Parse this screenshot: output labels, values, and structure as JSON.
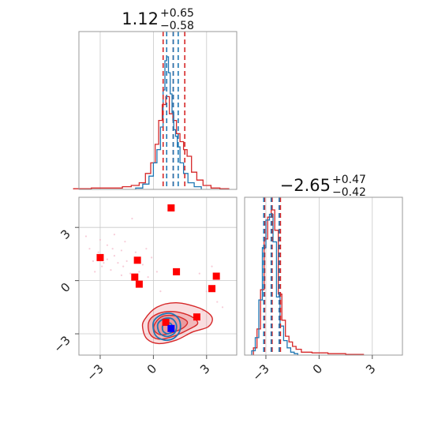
{
  "chart_data": {
    "type": "corner",
    "parameters": [
      {
        "title": {
          "median": "1.12",
          "plus": "+0.65",
          "minus": "−0.58"
        },
        "xlim": [
          -4.2,
          4.7
        ],
        "ticks": [
          -3,
          0,
          3
        ],
        "tick_labels": [
          "−3",
          "0",
          "3"
        ]
      },
      {
        "title": {
          "median": "−2.65",
          "plus": "+0.47",
          "minus": "−0.42"
        },
        "xlim": [
          -4.2,
          4.7
        ],
        "ticks": [
          -3,
          0,
          3
        ],
        "tick_labels": [
          "−3",
          "0",
          "3"
        ]
      }
    ],
    "grid": true,
    "series": [
      {
        "color": "#d62728",
        "hist1": {
          "centers": [
            -4.0,
            -3.0,
            -2.0,
            -1.5,
            -1.0,
            -0.6,
            -0.3,
            0.0,
            0.2,
            0.4,
            0.6,
            0.8,
            1.0,
            1.2,
            1.4,
            1.6,
            1.8,
            2.0,
            2.3,
            2.6,
            3.0,
            3.5,
            4.0
          ],
          "heights": [
            0.005,
            0.01,
            0.01,
            0.02,
            0.03,
            0.05,
            0.12,
            0.2,
            0.34,
            0.52,
            0.64,
            0.7,
            0.57,
            0.52,
            0.42,
            0.36,
            0.3,
            0.25,
            0.13,
            0.07,
            0.03,
            0.01,
            0.005
          ]
        },
        "hist2": {
          "centers": [
            -3.6,
            -3.4,
            -3.2,
            -3.0,
            -2.8,
            -2.6,
            -2.4,
            -2.2,
            -2.0,
            -1.8,
            -1.6,
            -1.4,
            -1.2,
            -0.8,
            0.0,
            1.0,
            2.0
          ],
          "heights": [
            0.05,
            0.18,
            0.45,
            0.8,
            0.95,
            1.0,
            0.86,
            0.42,
            0.24,
            0.13,
            0.09,
            0.06,
            0.04,
            0.02,
            0.015,
            0.01,
            0.005
          ]
        },
        "quantiles1": [
          0.55,
          1.12,
          1.77
        ],
        "quantiles2": [
          -3.07,
          -2.65,
          -2.18
        ],
        "contours": [
          [
            [
              -0.5,
              -2.2
            ],
            [
              0.2,
              -1.5
            ],
            [
              1.3,
              -1.25
            ],
            [
              2.6,
              -1.55
            ],
            [
              3.3,
              -2.05
            ],
            [
              3.1,
              -2.6
            ],
            [
              2.2,
              -2.9
            ],
            [
              1.3,
              -3.35
            ],
            [
              0.3,
              -3.55
            ],
            [
              -0.35,
              -3.3
            ],
            [
              -0.6,
              -2.7
            ]
          ],
          [
            [
              -0.25,
              -2.3
            ],
            [
              0.3,
              -1.85
            ],
            [
              1.2,
              -1.75
            ],
            [
              2.1,
              -2.0
            ],
            [
              2.5,
              -2.4
            ],
            [
              2.0,
              -2.75
            ],
            [
              1.1,
              -3.15
            ],
            [
              0.3,
              -3.3
            ],
            [
              -0.2,
              -3.0
            ]
          ],
          [
            [
              0.1,
              -2.4
            ],
            [
              0.55,
              -2.0
            ],
            [
              1.3,
              -2.0
            ],
            [
              1.9,
              -2.3
            ],
            [
              1.7,
              -2.65
            ],
            [
              1.0,
              -2.95
            ],
            [
              0.4,
              -3.05
            ],
            [
              0.05,
              -2.8
            ]
          ]
        ],
        "markers": [
          [
            -3.0,
            1.3
          ],
          [
            -0.9,
            1.15
          ],
          [
            1.0,
            4.1
          ],
          [
            1.3,
            0.5
          ],
          [
            -1.05,
            0.2
          ],
          [
            -0.8,
            -0.2
          ],
          [
            3.55,
            0.25
          ],
          [
            3.3,
            -0.45
          ],
          [
            2.45,
            -2.05
          ],
          [
            0.7,
            -2.35
          ]
        ]
      },
      {
        "color": "#1f77b4",
        "hist1": {
          "centers": [
            -0.8,
            -0.4,
            -0.1,
            0.1,
            0.3,
            0.5,
            0.6,
            0.7,
            0.8,
            0.9,
            1.0,
            1.1,
            1.2,
            1.3,
            1.4,
            1.6,
            1.8,
            2.1,
            2.5
          ],
          "heights": [
            0.01,
            0.04,
            0.1,
            0.2,
            0.3,
            0.47,
            0.75,
            0.97,
            1.0,
            0.88,
            0.72,
            0.58,
            0.45,
            0.4,
            0.32,
            0.2,
            0.12,
            0.05,
            0.02
          ]
        },
        "hist2": {
          "centers": [
            -3.7,
            -3.5,
            -3.3,
            -3.1,
            -2.9,
            -2.7,
            -2.5,
            -2.3,
            -2.1,
            -1.9,
            -1.7,
            -1.5,
            -1.3
          ],
          "heights": [
            0.03,
            0.12,
            0.38,
            0.74,
            0.93,
            0.97,
            0.78,
            0.4,
            0.2,
            0.1,
            0.05,
            0.02,
            0.01
          ]
        },
        "quantiles1": [
          0.75,
          1.12,
          1.4
        ],
        "quantiles2": [
          -3.12,
          -2.7,
          -2.25
        ],
        "contours": [
          [
            [
              0.0,
              -2.35
            ],
            [
              0.4,
              -1.95
            ],
            [
              1.0,
              -1.85
            ],
            [
              1.45,
              -2.2
            ],
            [
              1.5,
              -2.8
            ],
            [
              1.15,
              -3.25
            ],
            [
              0.6,
              -3.35
            ],
            [
              0.1,
              -3.05
            ]
          ],
          [
            [
              0.25,
              -2.45
            ],
            [
              0.6,
              -2.15
            ],
            [
              1.05,
              -2.15
            ],
            [
              1.3,
              -2.5
            ],
            [
              1.2,
              -2.95
            ],
            [
              0.75,
              -3.15
            ],
            [
              0.35,
              -2.95
            ]
          ],
          [
            [
              0.55,
              -2.5
            ],
            [
              0.95,
              -2.4
            ],
            [
              1.1,
              -2.75
            ],
            [
              0.85,
              -3.0
            ],
            [
              0.55,
              -2.85
            ]
          ]
        ],
        "markers": [
          [
            1.0,
            -2.7
          ]
        ]
      }
    ],
    "background_points": [
      [
        -3.6,
        1.8
      ],
      [
        -3.3,
        0.5
      ],
      [
        -3.1,
        1.6
      ],
      [
        -2.8,
        1.0
      ],
      [
        -2.6,
        2.0
      ],
      [
        -2.2,
        1.4
      ],
      [
        -2.4,
        0.6
      ],
      [
        -1.8,
        1.7
      ],
      [
        -1.5,
        1.1
      ],
      [
        -1.3,
        0.4
      ],
      [
        -1.0,
        1.6
      ],
      [
        -0.6,
        0.9
      ],
      [
        -0.3,
        0.2
      ],
      [
        -1.8,
        0.3
      ],
      [
        -2.0,
        1.0
      ],
      [
        -1.2,
        3.5
      ],
      [
        -3.8,
        2.5
      ],
      [
        -3.0,
        2.3
      ],
      [
        -2.2,
        2.6
      ],
      [
        0.2,
        0.5
      ],
      [
        2.6,
        0.4
      ],
      [
        3.0,
        -0.6
      ],
      [
        3.6,
        -1.2
      ],
      [
        3.3,
        0.8
      ],
      [
        2.8,
        -1.7
      ],
      [
        -0.4,
        1.8
      ],
      [
        -1.6,
        2.2
      ],
      [
        -2.6,
        1.2
      ],
      [
        -0.1,
        1.3
      ],
      [
        3.9,
        -1.5
      ],
      [
        -3.4,
        1.1
      ],
      [
        -2.9,
        0.8
      ],
      [
        -1.7,
        0.8
      ],
      [
        -0.8,
        0.5
      ],
      [
        -2.3,
        1.8
      ],
      [
        0.4,
        -0.6
      ]
    ]
  }
}
